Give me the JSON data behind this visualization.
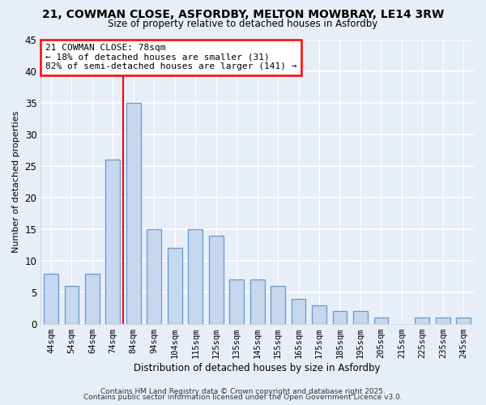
{
  "title1": "21, COWMAN CLOSE, ASFORDBY, MELTON MOWBRAY, LE14 3RW",
  "title2": "Size of property relative to detached houses in Asfordby",
  "xlabel": "Distribution of detached houses by size in Asfordby",
  "ylabel": "Number of detached properties",
  "categories": [
    "44sqm",
    "54sqm",
    "64sqm",
    "74sqm",
    "84sqm",
    "94sqm",
    "104sqm",
    "115sqm",
    "125sqm",
    "135sqm",
    "145sqm",
    "155sqm",
    "165sqm",
    "175sqm",
    "185sqm",
    "195sqm",
    "205sqm",
    "215sqm",
    "225sqm",
    "235sqm",
    "245sqm"
  ],
  "values": [
    8,
    6,
    8,
    26,
    35,
    15,
    12,
    15,
    14,
    7,
    7,
    6,
    4,
    3,
    2,
    2,
    1,
    0,
    1,
    1,
    1
  ],
  "bar_color": "#c5d8f0",
  "bar_edge_color": "#6699cc",
  "bg_color": "#e8eef8",
  "plot_bg_color": "#e8eef8",
  "grid_color": "#ffffff",
  "vline_color": "red",
  "vline_x": 3.5,
  "annotation_title": "21 COWMAN CLOSE: 78sqm",
  "annotation_line1": "← 18% of detached houses are smaller (31)",
  "annotation_line2": "82% of semi-detached houses are larger (141) →",
  "annotation_box_color": "white",
  "annotation_box_edge": "red",
  "ylim": [
    0,
    45
  ],
  "yticks": [
    0,
    5,
    10,
    15,
    20,
    25,
    30,
    35,
    40,
    45
  ],
  "footer1": "Contains HM Land Registry data © Crown copyright and database right 2025.",
  "footer2": "Contains public sector information licensed under the Open Government Licence v3.0."
}
